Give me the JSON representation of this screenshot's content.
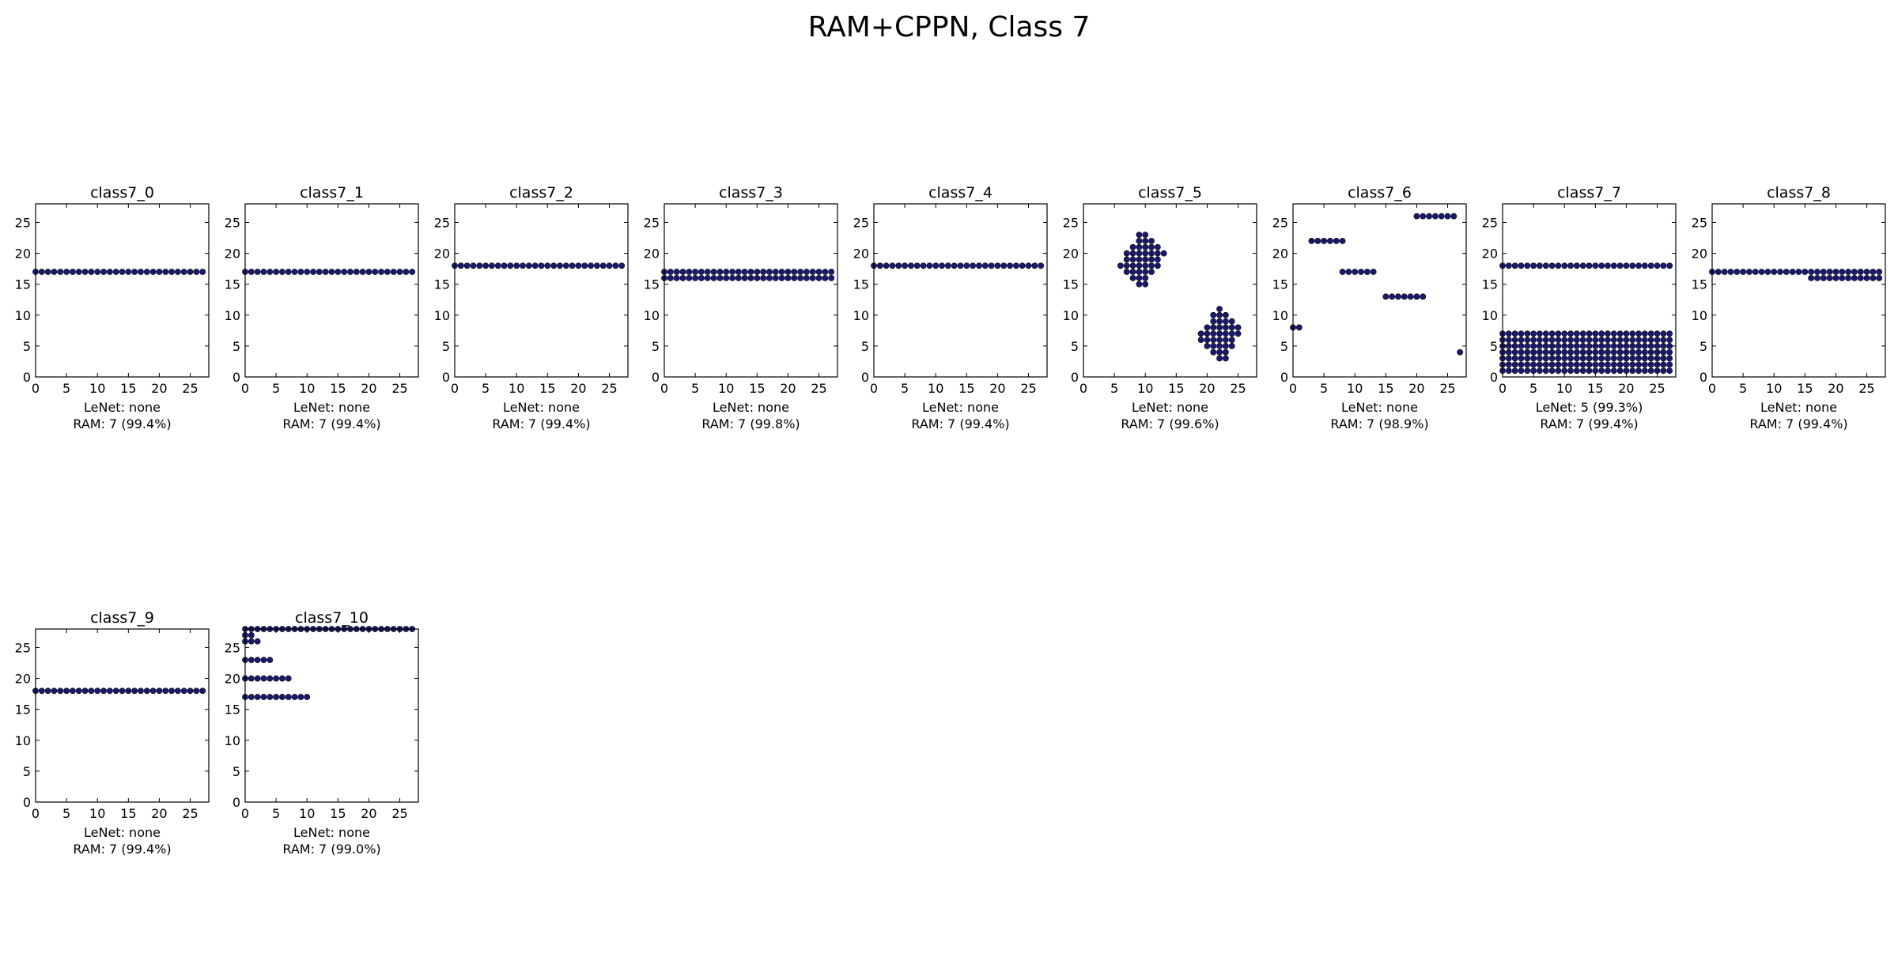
{
  "figure": {
    "title": "RAM+CPPN, Class 7",
    "marker_color": "#191970"
  },
  "chart_data": [
    {
      "type": "scatter",
      "title": "class7_0",
      "xlim": [
        0,
        28
      ],
      "ylim": [
        0,
        28
      ],
      "xticks": [
        0,
        5,
        10,
        15,
        20,
        25
      ],
      "yticks": [
        0,
        5,
        10,
        15,
        20,
        25
      ],
      "caption": [
        "LeNet: none",
        "RAM: 7 (99.4%)"
      ],
      "rows": [
        {
          "y": 17,
          "x_from": 0,
          "x_to": 27
        }
      ]
    },
    {
      "type": "scatter",
      "title": "class7_1",
      "xlim": [
        0,
        28
      ],
      "ylim": [
        0,
        28
      ],
      "xticks": [
        0,
        5,
        10,
        15,
        20,
        25
      ],
      "yticks": [
        0,
        5,
        10,
        15,
        20,
        25
      ],
      "caption": [
        "LeNet: none",
        "RAM: 7 (99.4%)"
      ],
      "rows": [
        {
          "y": 17,
          "x_from": 0,
          "x_to": 27
        }
      ]
    },
    {
      "type": "scatter",
      "title": "class7_2",
      "xlim": [
        0,
        28
      ],
      "ylim": [
        0,
        28
      ],
      "xticks": [
        0,
        5,
        10,
        15,
        20,
        25
      ],
      "yticks": [
        0,
        5,
        10,
        15,
        20,
        25
      ],
      "caption": [
        "LeNet: none",
        "RAM: 7 (99.4%)"
      ],
      "rows": [
        {
          "y": 18,
          "x_from": 0,
          "x_to": 27
        }
      ]
    },
    {
      "type": "scatter",
      "title": "class7_3",
      "xlim": [
        0,
        28
      ],
      "ylim": [
        0,
        28
      ],
      "xticks": [
        0,
        5,
        10,
        15,
        20,
        25
      ],
      "yticks": [
        0,
        5,
        10,
        15,
        20,
        25
      ],
      "caption": [
        "LeNet: none",
        "RAM: 7 (99.8%)"
      ],
      "rows": [
        {
          "y": 17,
          "x_from": 0,
          "x_to": 27
        },
        {
          "y": 16,
          "x_from": 0,
          "x_to": 27
        }
      ]
    },
    {
      "type": "scatter",
      "title": "class7_4",
      "xlim": [
        0,
        28
      ],
      "ylim": [
        0,
        28
      ],
      "xticks": [
        0,
        5,
        10,
        15,
        20,
        25
      ],
      "yticks": [
        0,
        5,
        10,
        15,
        20,
        25
      ],
      "caption": [
        "LeNet: none",
        "RAM: 7 (99.4%)"
      ],
      "rows": [
        {
          "y": 18,
          "x_from": 0,
          "x_to": 27
        }
      ]
    },
    {
      "type": "scatter",
      "title": "class7_5",
      "xlim": [
        0,
        28
      ],
      "ylim": [
        0,
        28
      ],
      "xticks": [
        0,
        5,
        10,
        15,
        20,
        25
      ],
      "yticks": [
        0,
        5,
        10,
        15,
        20,
        25
      ],
      "caption": [
        "LeNet: none",
        "RAM: 7 (99.6%)"
      ],
      "rows": [
        {
          "y": 23,
          "x_from": 9,
          "x_to": 10
        },
        {
          "y": 22,
          "x_from": 9,
          "x_to": 11
        },
        {
          "y": 21,
          "x_from": 8,
          "x_to": 12
        },
        {
          "y": 20,
          "x_from": 7,
          "x_to": 13
        },
        {
          "y": 19,
          "x_from": 7,
          "x_to": 12
        },
        {
          "y": 18,
          "x_from": 6,
          "x_to": 12
        },
        {
          "y": 17,
          "x_from": 7,
          "x_to": 11
        },
        {
          "y": 16,
          "x_from": 8,
          "x_to": 10
        },
        {
          "y": 15,
          "x_from": 9,
          "x_to": 10
        },
        {
          "y": 11,
          "x_from": 22,
          "x_to": 22
        },
        {
          "y": 10,
          "x_from": 21,
          "x_to": 23
        },
        {
          "y": 9,
          "x_from": 21,
          "x_to": 24
        },
        {
          "y": 8,
          "x_from": 20,
          "x_to": 25
        },
        {
          "y": 7,
          "x_from": 19,
          "x_to": 25
        },
        {
          "y": 6,
          "x_from": 19,
          "x_to": 24
        },
        {
          "y": 5,
          "x_from": 20,
          "x_to": 24
        },
        {
          "y": 4,
          "x_from": 21,
          "x_to": 23
        },
        {
          "y": 3,
          "x_from": 22,
          "x_to": 23
        }
      ]
    },
    {
      "type": "scatter",
      "title": "class7_6",
      "xlim": [
        0,
        28
      ],
      "ylim": [
        0,
        28
      ],
      "xticks": [
        0,
        5,
        10,
        15,
        20,
        25
      ],
      "yticks": [
        0,
        5,
        10,
        15,
        20,
        25
      ],
      "caption": [
        "LeNet: none",
        "RAM: 7 (98.9%)"
      ],
      "rows": [
        {
          "y": 8,
          "x_from": 0,
          "x_to": 1
        },
        {
          "y": 22,
          "x_from": 3,
          "x_to": 8
        },
        {
          "y": 17,
          "x_from": 8,
          "x_to": 13
        },
        {
          "y": 13,
          "x_from": 15,
          "x_to": 21
        },
        {
          "y": 26,
          "x_from": 20,
          "x_to": 26
        },
        {
          "y": 4,
          "x_from": 27,
          "x_to": 27
        }
      ]
    },
    {
      "type": "scatter",
      "title": "class7_7",
      "xlim": [
        0,
        28
      ],
      "ylim": [
        0,
        28
      ],
      "xticks": [
        0,
        5,
        10,
        15,
        20,
        25
      ],
      "yticks": [
        0,
        5,
        10,
        15,
        20,
        25
      ],
      "caption": [
        "LeNet: 5 (99.3%)",
        "RAM: 7 (99.4%)"
      ],
      "rows": [
        {
          "y": 18,
          "x_from": 0,
          "x_to": 27
        },
        {
          "y": 7,
          "x_from": 0,
          "x_to": 27
        },
        {
          "y": 6,
          "x_from": 0,
          "x_to": 27
        },
        {
          "y": 5,
          "x_from": 0,
          "x_to": 27
        },
        {
          "y": 4,
          "x_from": 0,
          "x_to": 27
        },
        {
          "y": 3,
          "x_from": 0,
          "x_to": 27
        },
        {
          "y": 2,
          "x_from": 0,
          "x_to": 27
        },
        {
          "y": 1,
          "x_from": 0,
          "x_to": 27
        }
      ]
    },
    {
      "type": "scatter",
      "title": "class7_8",
      "xlim": [
        0,
        28
      ],
      "ylim": [
        0,
        28
      ],
      "xticks": [
        0,
        5,
        10,
        15,
        20,
        25
      ],
      "yticks": [
        0,
        5,
        10,
        15,
        20,
        25
      ],
      "caption": [
        "LeNet: none",
        "RAM: 7 (99.4%)"
      ],
      "rows": [
        {
          "y": 17,
          "x_from": 0,
          "x_to": 27
        },
        {
          "y": 16,
          "x_from": 16,
          "x_to": 27
        }
      ]
    },
    {
      "type": "scatter",
      "title": "class7_9",
      "xlim": [
        0,
        28
      ],
      "ylim": [
        0,
        28
      ],
      "xticks": [
        0,
        5,
        10,
        15,
        20,
        25
      ],
      "yticks": [
        0,
        5,
        10,
        15,
        20,
        25
      ],
      "caption": [
        "LeNet: none",
        "RAM: 7 (99.4%)"
      ],
      "rows": [
        {
          "y": 18,
          "x_from": 0,
          "x_to": 27
        }
      ]
    },
    {
      "type": "scatter",
      "title": "class7_10",
      "xlim": [
        0,
        28
      ],
      "ylim": [
        0,
        28
      ],
      "xticks": [
        0,
        5,
        10,
        15,
        20,
        25
      ],
      "yticks": [
        0,
        5,
        10,
        15,
        20,
        25
      ],
      "caption": [
        "LeNet: none",
        "RAM: 7 (99.0%)"
      ],
      "rows": [
        {
          "y": 28,
          "x_from": 0,
          "x_to": 27
        },
        {
          "y": 27,
          "x_from": 0,
          "x_to": 1
        },
        {
          "y": 26,
          "x_from": 0,
          "x_to": 2
        },
        {
          "y": 23,
          "x_from": 0,
          "x_to": 4
        },
        {
          "y": 20,
          "x_from": 0,
          "x_to": 7
        },
        {
          "y": 17,
          "x_from": 0,
          "x_to": 10
        }
      ]
    }
  ]
}
